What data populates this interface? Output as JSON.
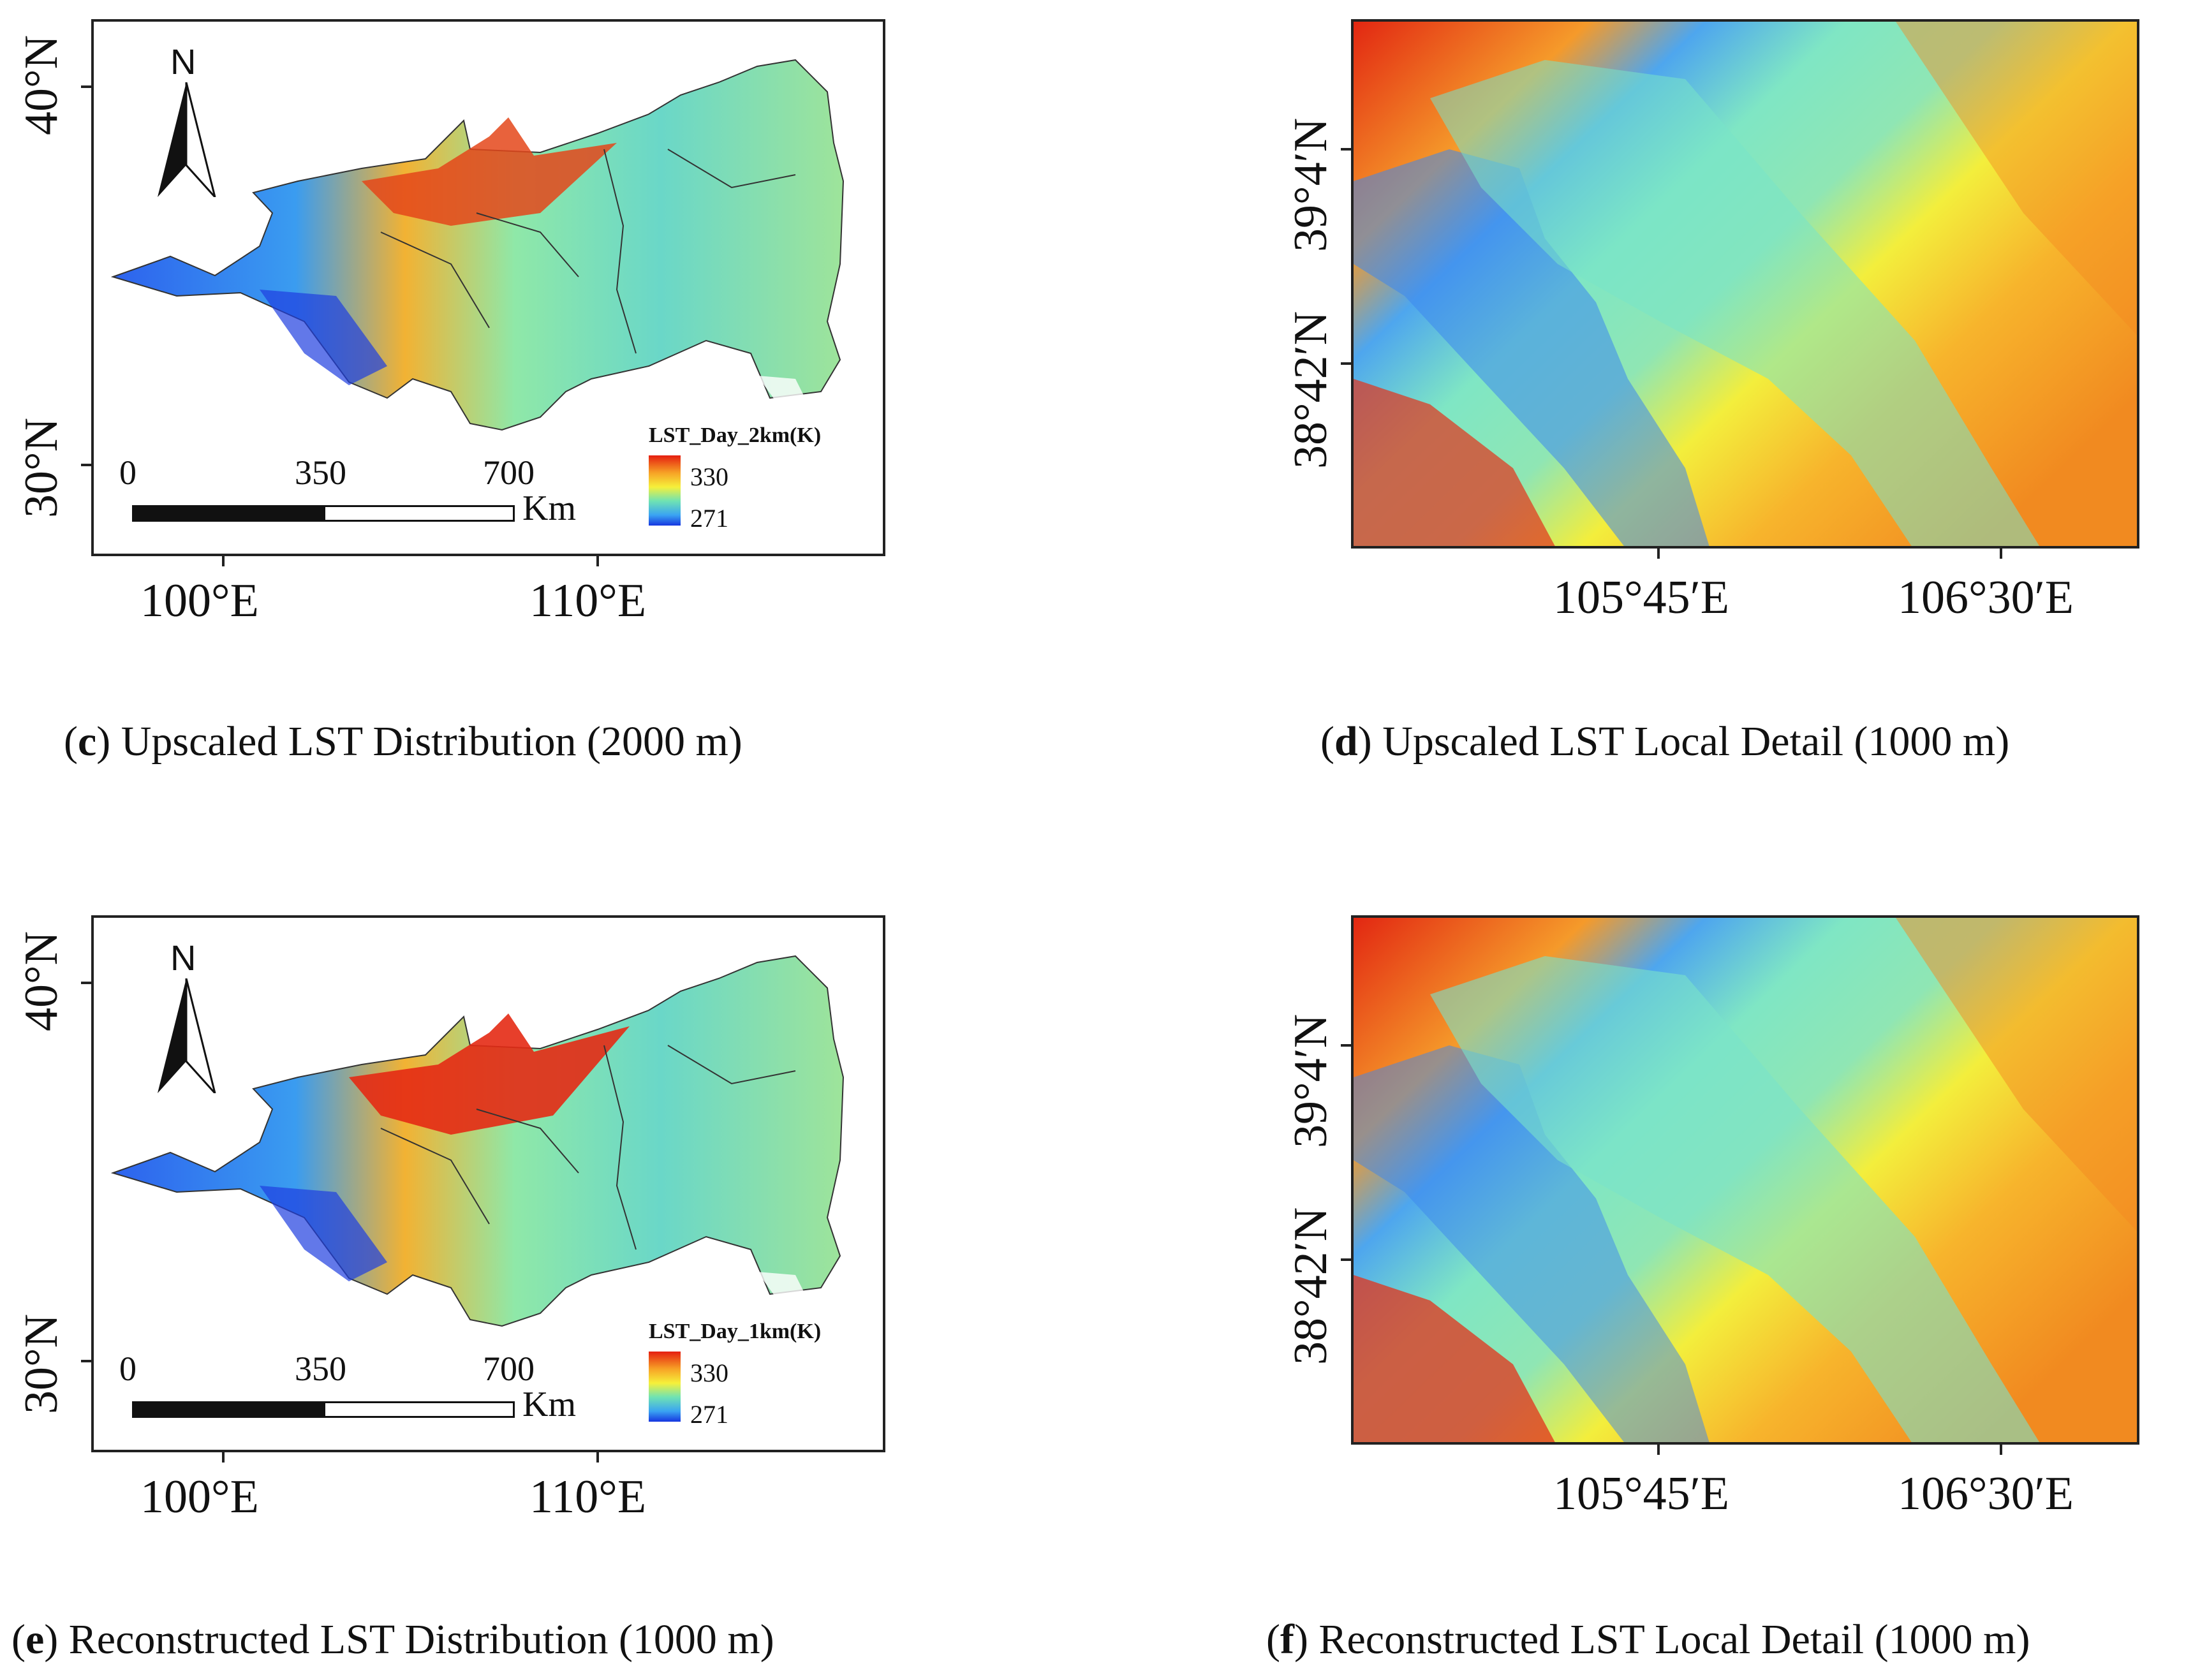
{
  "panels": [
    {
      "id": "c",
      "caption_letter": "c",
      "caption_text": "Upscaled LST Distribution (2000 m)",
      "lat_labels": [
        "40°N",
        "30°N"
      ],
      "lon_labels": [
        "100°E",
        "110°E"
      ],
      "north_label": "N",
      "scale_labels": [
        "0",
        "350",
        "700"
      ],
      "scale_unit": "Km",
      "legend_title": "LST_Day_2km(K)",
      "legend_max": "330",
      "legend_min": "271"
    },
    {
      "id": "d",
      "caption_letter": "d",
      "caption_text": "Upscaled LST Local Detail (1000 m)",
      "lat_labels": [
        "39°4′N",
        "38°42′N"
      ],
      "lon_labels": [
        "105°45′E",
        "106°30′E"
      ]
    },
    {
      "id": "e",
      "caption_letter": "e",
      "caption_text": "Reconstructed LST Distribution (1000 m)",
      "lat_labels": [
        "40°N",
        "30°N"
      ],
      "lon_labels": [
        "100°E",
        "110°E"
      ],
      "north_label": "N",
      "scale_labels": [
        "0",
        "350",
        "700"
      ],
      "scale_unit": "Km",
      "legend_title": "LST_Day_1km(K)",
      "legend_max": "330",
      "legend_min": "271"
    },
    {
      "id": "f",
      "caption_letter": "f",
      "caption_text": "Reconstructed LST Local Detail (1000 m)",
      "lat_labels": [
        "39°4′N",
        "38°42′N"
      ],
      "lon_labels": [
        "105°45′E",
        "106°30′E"
      ]
    }
  ],
  "colors": {
    "hot": "#e51e10",
    "warm": "#f7a326",
    "mid": "#f6f03a",
    "cool": "#6fe3b3",
    "cold": "#1636e0"
  }
}
